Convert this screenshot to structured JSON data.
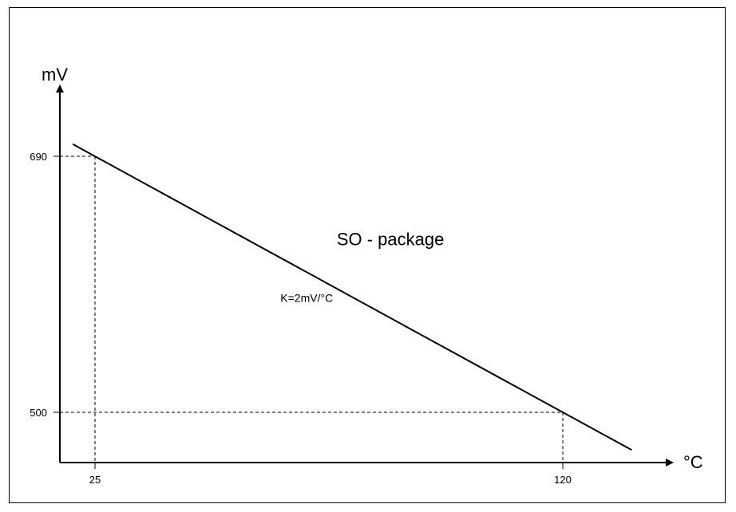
{
  "chart_data": {
    "type": "line",
    "title": "",
    "xlabel": "°C",
    "ylabel": "mV",
    "x_ticks": [
      25,
      120
    ],
    "y_ticks": [
      500,
      690
    ],
    "series": [
      {
        "x": [
          20.5,
          134
        ],
        "y": [
          699,
          472
        ]
      }
    ],
    "reference_points": [
      {
        "x": 25,
        "y": 690
      },
      {
        "x": 120,
        "y": 500
      }
    ],
    "annotations": [
      {
        "text": "SO - package",
        "x": 85,
        "y": 624
      },
      {
        "text": "K=2mV/°C",
        "x": 68,
        "y": 582
      }
    ],
    "grid": false,
    "colors": {
      "line": "#000000",
      "axes": "#000000",
      "guides": "#000000",
      "background": "#ffffff"
    }
  }
}
